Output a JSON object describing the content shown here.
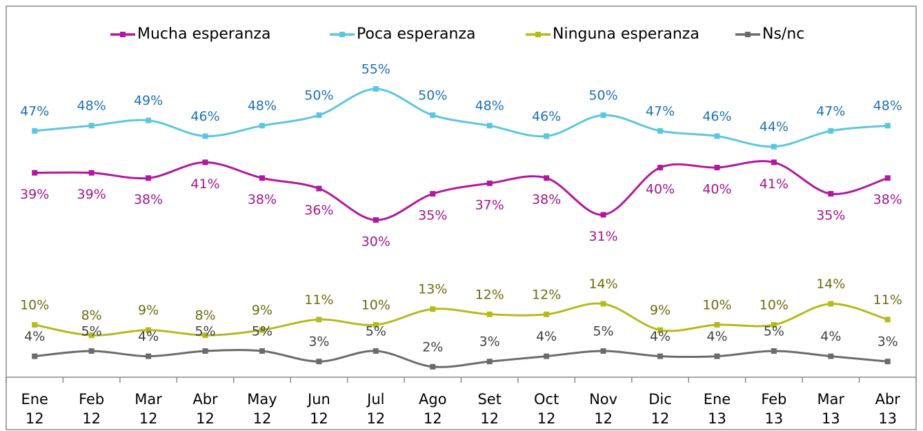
{
  "chart_data": {
    "type": "line",
    "categories": [
      "Ene 12",
      "Feb 12",
      "Mar 12",
      "Abr 12",
      "May 12",
      "Jun 12",
      "Jul 12",
      "Ago 12",
      "Set 12",
      "Oct 12",
      "Nov 12",
      "Dic 12",
      "Ene 13",
      "Feb 13",
      "Mar 13",
      "Abr 13"
    ],
    "ylim": [
      0,
      70
    ],
    "series": [
      {
        "name": "Mucha esperanza",
        "color": "#b3169f",
        "label_color": "#a3148f",
        "label_position": "below",
        "values": [
          39,
          39,
          38,
          41,
          38,
          36,
          30,
          35,
          37,
          38,
          31,
          40,
          40,
          41,
          35,
          38
        ],
        "value_labels": [
          "39%",
          "39%",
          "38%",
          "41%",
          "38%",
          "36%",
          "30%",
          "35%",
          "37%",
          "38%",
          "31%",
          "40%",
          "40%",
          "41%",
          "35%",
          "38%"
        ]
      },
      {
        "name": "Poca esperanza",
        "color": "#5cc6e0",
        "label_color": "#1f70b2",
        "label_position": "above",
        "values": [
          47,
          48,
          49,
          46,
          48,
          50,
          55,
          50,
          48,
          46,
          50,
          47,
          46,
          44,
          47,
          48
        ],
        "value_labels": [
          "47%",
          "48%",
          "49%",
          "46%",
          "48%",
          "50%",
          "55%",
          "50%",
          "48%",
          "46%",
          "50%",
          "47%",
          "46%",
          "44%",
          "47%",
          "48%"
        ]
      },
      {
        "name": "Ninguna esperanza",
        "color": "#b4ba1c",
        "label_color": "#6a6c0c",
        "label_position": "above",
        "values": [
          10,
          8,
          9,
          8,
          9,
          11,
          10,
          13,
          12,
          12,
          14,
          9,
          10,
          10,
          14,
          11
        ],
        "value_labels": [
          "10%",
          "8%",
          "9%",
          "8%",
          "9%",
          "11%",
          "10%",
          "13%",
          "12%",
          "12%",
          "14%",
          "9%",
          "10%",
          "10%",
          "14%",
          "11%"
        ]
      },
      {
        "name": "Ns/nc",
        "color": "#6b6b6b",
        "label_color": "#404040",
        "label_position": "above",
        "values": [
          4,
          5,
          4,
          5,
          5,
          3,
          5,
          2,
          3,
          4,
          5,
          4,
          4,
          5,
          4,
          3
        ],
        "value_labels": [
          "4%",
          "5%",
          "4%",
          "5%",
          "5%",
          "3%",
          "5%",
          "2%",
          "3%",
          "4%",
          "5%",
          "4%",
          "4%",
          "5%",
          "4%",
          "3%"
        ]
      }
    ],
    "legend": "top"
  }
}
